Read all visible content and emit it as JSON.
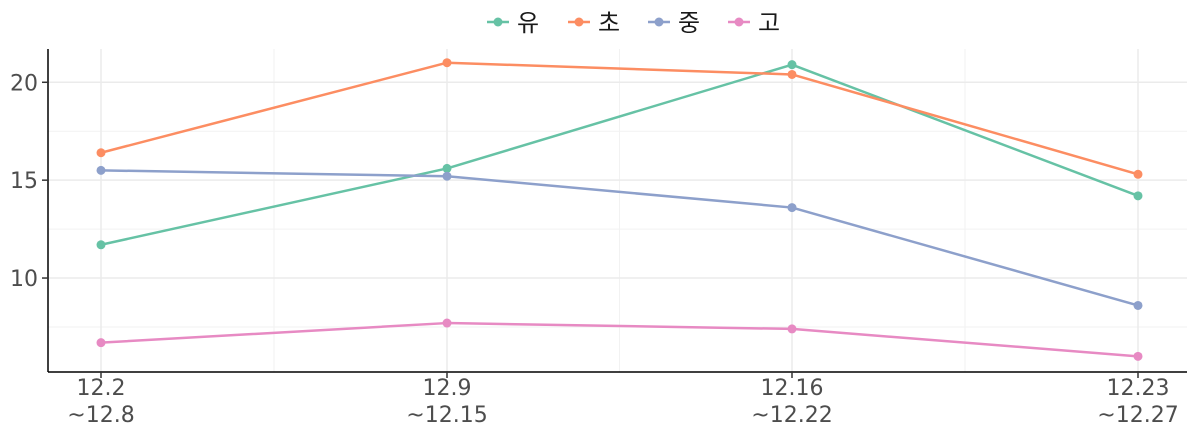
{
  "chart_data": {
    "type": "line",
    "categories": [
      [
        "12.2",
        "~12.8"
      ],
      [
        "12.9",
        "~12.15"
      ],
      [
        "12.16",
        "~12.22"
      ],
      [
        "12.23",
        "~12.27"
      ]
    ],
    "series": [
      {
        "name": "유",
        "color": "#66c2a5",
        "values": [
          11.7,
          15.6,
          20.9,
          14.2
        ]
      },
      {
        "name": "초",
        "color": "#fc8d62",
        "values": [
          16.4,
          21.0,
          20.4,
          15.3
        ]
      },
      {
        "name": "중",
        "color": "#8da0cb",
        "values": [
          15.5,
          15.2,
          13.6,
          8.6
        ]
      },
      {
        "name": "고",
        "color": "#e78ac3",
        "values": [
          6.7,
          7.7,
          7.4,
          6.0
        ]
      }
    ],
    "y_ticks": [
      10,
      15,
      20
    ],
    "ylim": [
      5.2,
      21.7
    ],
    "grid": true,
    "legend_position": "top"
  }
}
